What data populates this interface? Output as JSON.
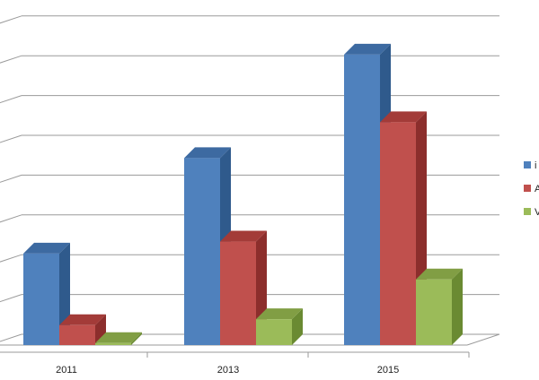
{
  "chart_data": {
    "type": "bar",
    "categories": [
      "2011",
      "2013",
      "2015"
    ],
    "series": [
      {
        "name": "i",
        "color": "#4F81BD",
        "side": "#2F5A8C",
        "top": "#3D6AA1",
        "values": [
          2.3,
          4.7,
          7.3
        ]
      },
      {
        "name": "A",
        "color": "#C0504D",
        "side": "#8C2E2C",
        "top": "#A33B38",
        "values": [
          0.5,
          2.6,
          5.6
        ]
      },
      {
        "name": "V",
        "color": "#9BBB59",
        "side": "#6A8A32",
        "top": "#819E44",
        "values": [
          0.05,
          0.65,
          1.65
        ]
      }
    ],
    "ylim": [
      0,
      8
    ],
    "grid": true,
    "legend_position": "right"
  }
}
